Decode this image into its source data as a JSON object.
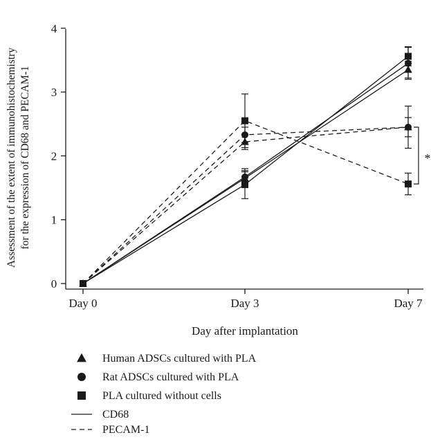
{
  "chart_data": {
    "type": "line",
    "title": "",
    "xlabel": "Day after implantation",
    "ylabel_line1": "Assessment of the extent of immunohistochemistry",
    "ylabel_line2": "for the expression of CD68 and PECAM-1",
    "categories": [
      "Day 0",
      "Day 3",
      "Day 7"
    ],
    "ylim": [
      0,
      4
    ],
    "yticks": [
      "0",
      "1",
      "2",
      "3",
      "4"
    ],
    "grid": false,
    "legend_placement": "below",
    "significance_label": "*",
    "markers": [
      {
        "shape": "triangle",
        "label": "Human ADSCs cultured with PLA"
      },
      {
        "shape": "circle",
        "label": "Rat ADSCs cultured with PLA"
      },
      {
        "shape": "square",
        "label": "PLA cultured without cells"
      }
    ],
    "line_styles": [
      {
        "style": "solid",
        "label": "CD68"
      },
      {
        "style": "dashed",
        "label": "PECAM-1"
      }
    ],
    "series": [
      {
        "marker": "triangle",
        "style": "solid",
        "values": [
          0,
          1.65,
          3.35
        ],
        "errors": [
          0,
          0.1,
          0.13
        ]
      },
      {
        "marker": "circle",
        "style": "solid",
        "values": [
          0,
          1.67,
          3.45
        ],
        "errors": [
          0,
          0.13,
          0.25
        ]
      },
      {
        "marker": "square",
        "style": "solid",
        "values": [
          0,
          1.55,
          3.56
        ],
        "errors": [
          0,
          0.22,
          0.15
        ]
      },
      {
        "marker": "triangle",
        "style": "dashed",
        "values": [
          0,
          2.22,
          2.45
        ],
        "errors": [
          0,
          0.12,
          0.15
        ]
      },
      {
        "marker": "circle",
        "style": "dashed",
        "values": [
          0,
          2.33,
          2.45
        ],
        "errors": [
          0,
          0.12,
          0.33
        ]
      },
      {
        "marker": "square",
        "style": "dashed",
        "values": [
          0,
          2.55,
          1.56
        ],
        "errors": [
          0,
          0.42,
          0.17
        ]
      }
    ],
    "color": "#1a1a1a"
  }
}
